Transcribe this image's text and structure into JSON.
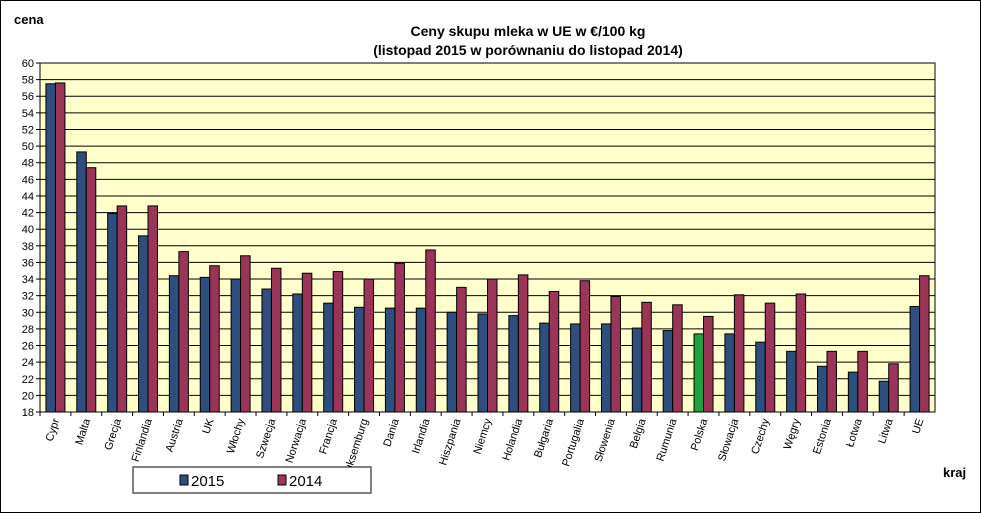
{
  "chart_data": {
    "type": "bar",
    "title": "Ceny skupu mleka  w UE w €/100 kg",
    "subtitle": "(listopad  2015 w porównaniu do listopad  2014)",
    "ylabel": "cena",
    "xlabel": "kraj",
    "ylim": [
      18,
      60
    ],
    "ytick_step": 2,
    "grid": true,
    "legend": "bottom-left",
    "categories": [
      "Cypr",
      "Malta",
      "Grecja",
      "Finlandia",
      "Austria",
      "UK",
      "Włochy",
      "Szwecja",
      "Norwacja",
      "Francja",
      "Luksemburg",
      "Dania",
      "Irlandia",
      "Hiszpania",
      "Niemcy",
      "Holandia",
      "Bułgaria",
      "Portugalia",
      "Słowenia",
      "Belgia",
      "Rumunia",
      "Polska",
      "Słowacja",
      "Czechy",
      "Węgry",
      "Estonia",
      "Łotwa",
      "Litwa",
      "UE"
    ],
    "series": [
      {
        "name": "2015",
        "color": "#2e4e7e",
        "values": [
          57.5,
          49.3,
          41.9,
          39.2,
          34.4,
          34.2,
          34.0,
          32.8,
          32.2,
          31.1,
          30.6,
          30.5,
          30.5,
          30.0,
          29.8,
          29.6,
          28.7,
          28.6,
          28.6,
          28.1,
          27.8,
          27.4,
          27.4,
          26.4,
          25.3,
          23.5,
          22.8,
          21.7,
          30.7
        ],
        "highlight": {
          "Polska": "#21a33c"
        }
      },
      {
        "name": "2014",
        "color": "#9b3558",
        "values": [
          57.6,
          47.4,
          42.8,
          42.8,
          37.3,
          35.6,
          36.8,
          35.3,
          34.7,
          34.9,
          34.0,
          35.9,
          37.5,
          33.0,
          34.0,
          34.5,
          32.5,
          33.8,
          31.9,
          31.2,
          30.9,
          29.5,
          32.1,
          31.1,
          32.2,
          25.3,
          25.3,
          23.8,
          34.4
        ]
      }
    ]
  },
  "colors": {
    "plot_background": "#ffffcc",
    "grid": "#000000",
    "series_2015": "#2e4e7e",
    "series_2014": "#9b3558",
    "highlight_polska": "#21a33c"
  }
}
